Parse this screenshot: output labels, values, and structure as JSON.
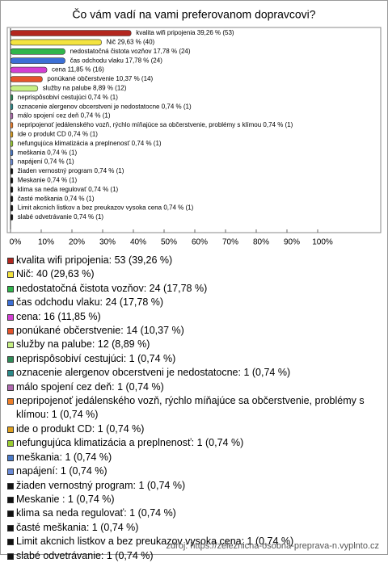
{
  "chart_data": {
    "type": "bar",
    "orientation": "horizontal",
    "title": "Čo vám vadí na vami preferovanom dopravcovi?",
    "categories": [
      "kvalita wifi pripojenia",
      "Nič",
      "nedostatočná čistota vozňov",
      "čas odchodu vlaku",
      "cena",
      "ponúkané občerstvenie",
      "služby na palube",
      "neprispôsobiví cestujúci",
      "oznacenie alergenov obcerstveni je nedostatocne",
      "málo spojení cez deň",
      "nepripojenoť jedálenského vozň, rýchlo míňajúce sa občerstvenie, problémy s klímou",
      "ide o produkt CD",
      "nefungujúca klimatizácia a preplnenosť",
      "meškania",
      "napájení",
      "žiaden vernostný program",
      "Meskanie ",
      "klima sa neda regulovať",
      "časté meškania",
      "Limit akcnich listkov a bez preukazov vysoka cena",
      "slabé odvetrávanie"
    ],
    "values": [
      39.26,
      29.63,
      17.78,
      17.78,
      11.85,
      10.37,
      8.89,
      0.74,
      0.74,
      0.74,
      0.74,
      0.74,
      0.74,
      0.74,
      0.74,
      0.74,
      0.74,
      0.74,
      0.74,
      0.74,
      0.74
    ],
    "value_labels": [
      "kvalita wifi pripojenia 39,26 % (53)",
      "Nič 29,63 % (40)",
      "nedostatočná čistota vozňov 17,78 % (24)",
      "čas odchodu vlaku 17,78 % (24)",
      "cena 11,85 % (16)",
      "ponúkané občerstvenie 10,37 % (14)",
      "služby na palube 8,89 % (12)",
      "neprispôsobiví cestujúci 0,74 % (1)",
      "oznacenie alergenov obcerstveni je nedostatocne 0,74 % (1)",
      "málo spojení cez deň 0,74 % (1)",
      "nepripojenoť jedálenského vozň, rýchlo míňajúce sa občerstvenie, problémy s klímou 0,74 % (1)",
      "ide o produkt CD 0,74 % (1)",
      "nefungujúca klimatizácia a preplnenosť 0,74 % (1)",
      "meškania 0,74 % (1)",
      "napájení 0,74 % (1)",
      "žiaden vernostný program 0,74 % (1)",
      "Meskanie  0,74 % (1)",
      "klima sa neda regulovať 0,74 % (1)",
      "časté meškania 0,74 % (1)",
      "Limit akcnich listkov a bez preukazov vysoka cena 0,74 % (1)",
      "slabé odvetrávanie 0,74 % (1)"
    ],
    "legend_labels": [
      "kvalita wifi pripojenia: 53 (39,26 %)",
      "Nič: 40 (29,63 %)",
      "nedostatočná čistota vozňov: 24 (17,78 %)",
      "čas odchodu vlaku: 24 (17,78 %)",
      "cena: 16 (11,85 %)",
      "ponúkané občerstvenie: 14 (10,37 %)",
      "služby na palube: 12 (8,89 %)",
      "neprispôsobiví cestujúci: 1 (0,74 %)",
      "oznacenie alergenov obcerstveni je nedostatocne: 1 (0,74 %)",
      "málo spojení cez deň: 1 (0,74 %)",
      "nepripojenoť jedálenského vozň, rýchlo míňajúce sa občerstvenie, problémy s klímou: 1 (0,74 %)",
      "ide o produkt CD: 1 (0,74 %)",
      "nefungujúca klimatizácia a preplnenosť: 1 (0,74 %)",
      "meškania: 1 (0,74 %)",
      "napájení: 1 (0,74 %)",
      "žiaden vernostný program: 1 (0,74 %)",
      "Meskanie : 1 (0,74 %)",
      "klima sa neda regulovať: 1 (0,74 %)",
      "časté meškania: 1 (0,74 %)",
      "Limit akcnich listkov a bez preukazov vysoka cena: 1 (0,74 %)",
      "slabé odvetrávanie: 1 (0,74 %)"
    ],
    "colors": [
      "#b3261e",
      "#f3e33f",
      "#2fb64b",
      "#3b6fd6",
      "#d23fd2",
      "#e5532b",
      "#c6ef84",
      "#2e8b57",
      "#2b8a8a",
      "#b06ab0",
      "#ef7f2a",
      "#dea020",
      "#9acd32",
      "#4a7ac8",
      "#6a8ad8",
      "#111111",
      "#111111",
      "#111111",
      "#111111",
      "#111111",
      "#111111"
    ],
    "xlim": [
      0,
      100
    ],
    "xticks": [
      {
        "value": 0,
        "label": "0%"
      },
      {
        "value": 10,
        "label": "10%"
      },
      {
        "value": 20,
        "label": "20%"
      },
      {
        "value": 30,
        "label": "30%"
      },
      {
        "value": 40,
        "label": "40%"
      },
      {
        "value": 50,
        "label": "50%"
      },
      {
        "value": 60,
        "label": "60%"
      },
      {
        "value": 70,
        "label": "70%"
      },
      {
        "value": 80,
        "label": "80%"
      },
      {
        "value": 90,
        "label": "90%"
      },
      {
        "value": 100,
        "label": "100%"
      }
    ],
    "source": "zdroj: https://zeleznicna-osobna-preprava-n.vyplnto.cz"
  }
}
